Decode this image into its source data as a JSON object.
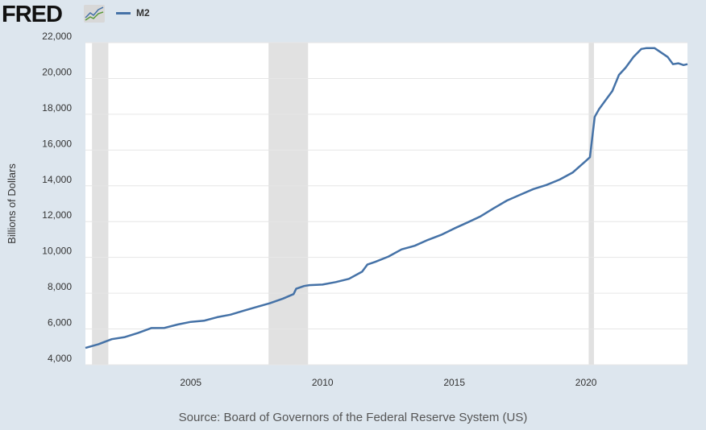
{
  "header": {
    "logo": "FRED",
    "legend_label": "M2"
  },
  "source": "Source: Board of Governors of the Federal Reserve System (US)",
  "colors": {
    "line": "#4572a7",
    "recession": "#e1e1e1",
    "grid": "#e6e6e6"
  },
  "chart_data": {
    "type": "line",
    "title": "",
    "xlabel": "",
    "ylabel": "Billions of Dollars",
    "xlim": [
      2001.0,
      2023.85
    ],
    "ylim": [
      4000,
      22000
    ],
    "x_ticks": [
      2005,
      2010,
      2015,
      2020
    ],
    "x_tick_labels": [
      "2005",
      "2010",
      "2015",
      "2020"
    ],
    "y_ticks": [
      4000,
      6000,
      8000,
      10000,
      12000,
      14000,
      16000,
      18000,
      20000,
      22000
    ],
    "y_tick_labels": [
      "4,000",
      "6,000",
      "8,000",
      "10,000",
      "12,000",
      "14,000",
      "16,000",
      "18,000",
      "20,000",
      "22,000"
    ],
    "grid": true,
    "recessions": [
      [
        2001.25,
        2001.87
      ],
      [
        2007.95,
        2009.45
      ],
      [
        2020.1,
        2020.3
      ]
    ],
    "series": [
      {
        "name": "M2",
        "x": [
          2001.0,
          2001.5,
          2002.0,
          2002.5,
          2003.0,
          2003.5,
          2004.0,
          2004.5,
          2005.0,
          2005.5,
          2006.0,
          2006.5,
          2007.0,
          2007.5,
          2008.0,
          2008.5,
          2008.9,
          2009.0,
          2009.3,
          2009.5,
          2010.0,
          2010.5,
          2011.0,
          2011.5,
          2011.7,
          2012.0,
          2012.5,
          2013.0,
          2013.5,
          2014.0,
          2014.5,
          2015.0,
          2015.5,
          2016.0,
          2016.5,
          2017.0,
          2017.5,
          2018.0,
          2018.5,
          2019.0,
          2019.5,
          2020.0,
          2020.15,
          2020.33,
          2020.5,
          2021.0,
          2021.25,
          2021.5,
          2021.8,
          2022.1,
          2022.3,
          2022.6,
          2022.9,
          2023.1,
          2023.3,
          2023.5,
          2023.7,
          2023.85
        ],
        "values": [
          4940,
          5150,
          5430,
          5550,
          5780,
          6050,
          6060,
          6250,
          6400,
          6460,
          6660,
          6800,
          7020,
          7230,
          7440,
          7700,
          7950,
          8250,
          8400,
          8450,
          8480,
          8620,
          8800,
          9200,
          9600,
          9750,
          10050,
          10450,
          10650,
          10980,
          11260,
          11620,
          11950,
          12300,
          12750,
          13180,
          13500,
          13820,
          14050,
          14350,
          14750,
          15400,
          15600,
          17850,
          18300,
          19300,
          20200,
          20600,
          21200,
          21650,
          21700,
          21700,
          21400,
          21200,
          20800,
          20850,
          20750,
          20800
        ]
      }
    ]
  }
}
